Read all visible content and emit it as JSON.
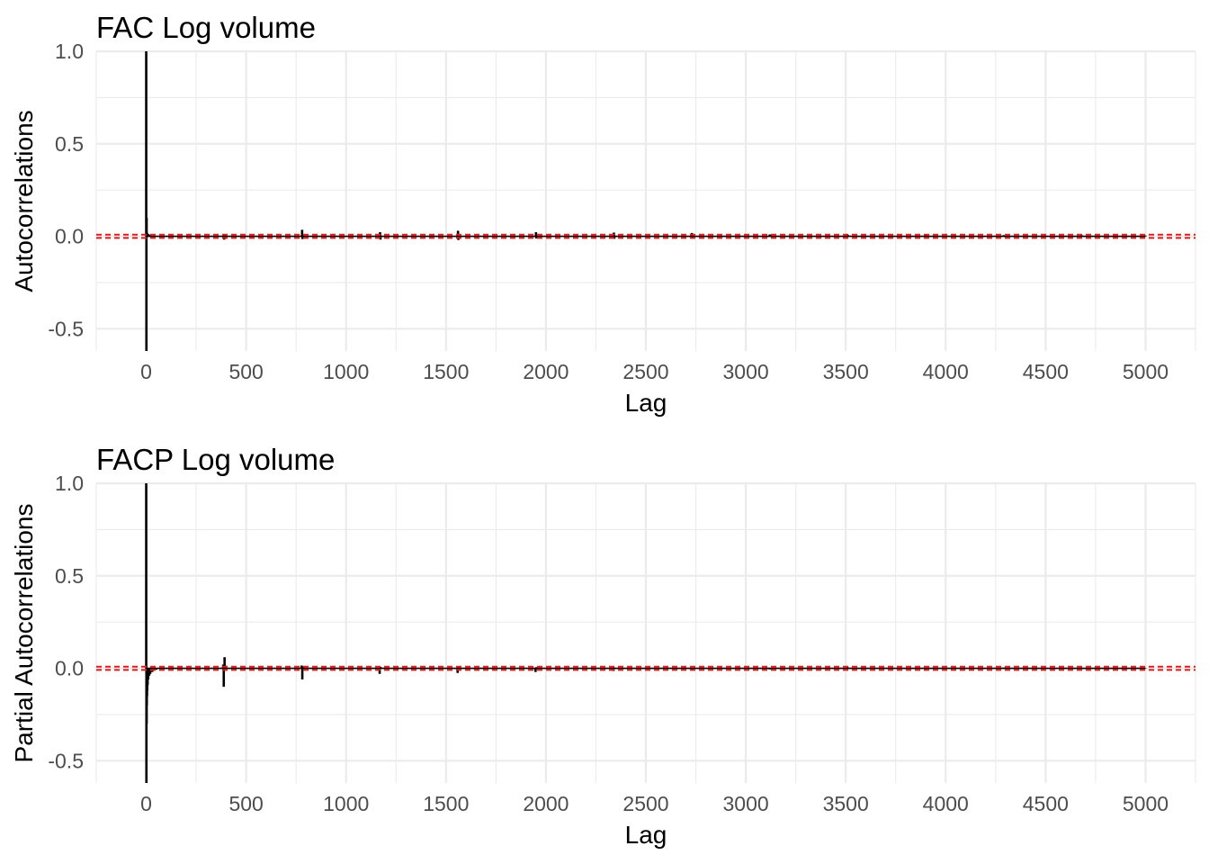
{
  "chart_data": [
    {
      "type": "bar",
      "title": "FAC Log volume",
      "xlabel": "Lag",
      "ylabel": "Autocorrelations",
      "xlim": [
        -250,
        5250
      ],
      "ylim": [
        -0.62,
        1.0
      ],
      "xticks": [
        0,
        500,
        1000,
        1500,
        2000,
        2500,
        3000,
        3500,
        4000,
        4500,
        5000
      ],
      "xtick_labels": [
        "0",
        "500",
        "1000",
        "1500",
        "2000",
        "2500",
        "3000",
        "3500",
        "4000",
        "4500",
        "5000"
      ],
      "yticks": [
        -0.5,
        0,
        0.5,
        1
      ],
      "ytick_labels": [
        "-0.5",
        "0.0",
        "0.5",
        "1.0"
      ],
      "grid": true,
      "confidence_band": [
        -0.0086,
        0.0086
      ],
      "confidence_band_color": "#e41a1c",
      "spike_color": "#000000",
      "series": [
        {
          "x": [
            0,
            1,
            2,
            3,
            5,
            8,
            12,
            20,
            390,
            392,
            780,
            782,
            1170,
            1172,
            1560,
            1562,
            1950,
            1952,
            2340,
            2342,
            2730,
            2732,
            3120,
            3510,
            3900,
            4290,
            4680,
            5000
          ],
          "values": [
            1.0,
            -0.62,
            0.1,
            0.02,
            0.015,
            0.012,
            0.01,
            0.008,
            -0.018,
            0.012,
            0.035,
            -0.015,
            0.022,
            -0.018,
            0.03,
            -0.02,
            0.022,
            -0.012,
            0.02,
            -0.014,
            0.018,
            -0.012,
            0.01,
            0.008,
            0.008,
            0.006,
            0.006,
            0.004
          ]
        }
      ]
    },
    {
      "type": "bar",
      "title": "FACP Log volume",
      "xlabel": "Lag",
      "ylabel": "Partial Autocorrelations",
      "xlim": [
        -250,
        5250
      ],
      "ylim": [
        -0.62,
        1.0
      ],
      "xticks": [
        0,
        500,
        1000,
        1500,
        2000,
        2500,
        3000,
        3500,
        4000,
        4500,
        5000
      ],
      "xtick_labels": [
        "0",
        "500",
        "1000",
        "1500",
        "2000",
        "2500",
        "3000",
        "3500",
        "4000",
        "4500",
        "5000"
      ],
      "yticks": [
        -0.5,
        0,
        0.5,
        1
      ],
      "ytick_labels": [
        "-0.5",
        "0.0",
        "0.5",
        "1.0"
      ],
      "grid": true,
      "confidence_band": [
        -0.0086,
        0.0086
      ],
      "confidence_band_color": "#e41a1c",
      "spike_color": "#000000",
      "series": [
        {
          "x": [
            0,
            1,
            2,
            3,
            4,
            5,
            7,
            10,
            15,
            20,
            30,
            40,
            50,
            385,
            388,
            392,
            395,
            778,
            781,
            784,
            1168,
            1172,
            1558,
            1562,
            1948,
            1952,
            2338,
            2342,
            2730,
            3120,
            3510,
            3900,
            4290,
            4680,
            5000
          ],
          "values": [
            1.0,
            -0.62,
            -0.3,
            -0.2,
            -0.15,
            -0.12,
            -0.09,
            -0.06,
            -0.04,
            -0.03,
            -0.02,
            -0.012,
            -0.008,
            0.02,
            -0.1,
            0.06,
            0.015,
            0.015,
            -0.06,
            0.01,
            -0.03,
            0.008,
            -0.025,
            0.006,
            -0.02,
            0.006,
            -0.015,
            0.004,
            -0.01,
            -0.006,
            0.005,
            -0.005,
            0.004,
            0.003,
            -0.002
          ]
        }
      ]
    }
  ]
}
